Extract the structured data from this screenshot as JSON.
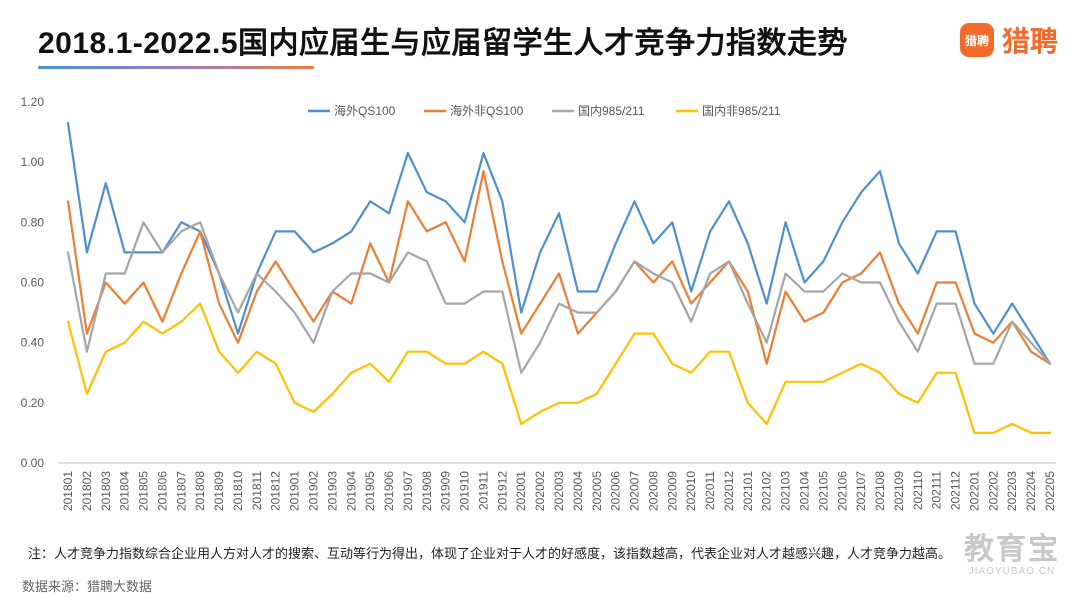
{
  "header": {
    "title": "2018.1-2022.5国内应届生与应届留学生人才竞争力指数走势",
    "brand_icon_text": "猎聘",
    "brand_name": "猎聘"
  },
  "footer": {
    "note": "注：人才竞争力指数综合企业用人方对人才的搜索、互动等行为得出，体现了企业对于人才的好感度，该指数越高，代表企业对人才越感兴趣，人才竞争力越高。",
    "source": "数据来源：猎聘大数据"
  },
  "watermark": {
    "main": "教育宝",
    "sub": "JIAOYUBAO.CN"
  },
  "colors": {
    "brand": "#f26a2a",
    "axis_text": "#595959",
    "grid": "#d9d9d9"
  },
  "chart_data": {
    "type": "line",
    "title": "",
    "xlabel": "",
    "ylabel": "",
    "ylim": [
      0,
      1.2
    ],
    "yticks": [
      "0.00",
      "0.20",
      "0.40",
      "0.60",
      "0.80",
      "1.00",
      "1.20"
    ],
    "grid": false,
    "legend_position": "top",
    "categories": [
      "201801",
      "201802",
      "201803",
      "201804",
      "201805",
      "201806",
      "201807",
      "201808",
      "201809",
      "201810",
      "201811",
      "201812",
      "201901",
      "201902",
      "201903",
      "201904",
      "201905",
      "201906",
      "201907",
      "201908",
      "201909",
      "201910",
      "201911",
      "201912",
      "202001",
      "202002",
      "202003",
      "202004",
      "202005",
      "202006",
      "202007",
      "202008",
      "202009",
      "202010",
      "202011",
      "202012",
      "202101",
      "202102",
      "202103",
      "202104",
      "202105",
      "202106",
      "202107",
      "202108",
      "202109",
      "202110",
      "202111",
      "202112",
      "202201",
      "202202",
      "202203",
      "202204",
      "202205"
    ],
    "series": [
      {
        "name": "海外QS100",
        "color": "#4e8fd0",
        "values": [
          1.13,
          0.7,
          0.93,
          0.7,
          0.7,
          0.7,
          0.8,
          0.77,
          0.63,
          0.43,
          0.63,
          0.77,
          0.77,
          0.7,
          0.73,
          0.77,
          0.87,
          0.83,
          1.03,
          0.9,
          0.87,
          0.8,
          1.03,
          0.87,
          0.5,
          0.7,
          0.83,
          0.57,
          0.57,
          0.73,
          0.87,
          0.73,
          0.8,
          0.57,
          0.77,
          0.87,
          0.73,
          0.53,
          0.8,
          0.6,
          0.67,
          0.8,
          0.9,
          0.97,
          0.73,
          0.63,
          0.77,
          0.77,
          0.53,
          0.43,
          0.53,
          0.43,
          0.33
        ]
      },
      {
        "name": "海外非QS100",
        "color": "#ed7d31",
        "values": [
          0.87,
          0.43,
          0.6,
          0.53,
          0.6,
          0.47,
          0.63,
          0.77,
          0.53,
          0.4,
          0.57,
          0.67,
          0.57,
          0.47,
          0.57,
          0.53,
          0.73,
          0.6,
          0.87,
          0.77,
          0.8,
          0.67,
          0.97,
          0.67,
          0.43,
          0.53,
          0.63,
          0.43,
          0.5,
          0.57,
          0.67,
          0.6,
          0.67,
          0.53,
          0.6,
          0.67,
          0.57,
          0.33,
          0.57,
          0.47,
          0.5,
          0.6,
          0.63,
          0.7,
          0.53,
          0.43,
          0.6,
          0.6,
          0.43,
          0.4,
          0.47,
          0.37,
          0.33
        ]
      },
      {
        "name": "国内985/211",
        "color": "#a5a5a5",
        "values": [
          0.7,
          0.37,
          0.63,
          0.63,
          0.8,
          0.7,
          0.77,
          0.8,
          0.63,
          0.5,
          0.63,
          0.57,
          0.5,
          0.4,
          0.57,
          0.63,
          0.63,
          0.6,
          0.7,
          0.67,
          0.53,
          0.53,
          0.57,
          0.57,
          0.3,
          0.4,
          0.53,
          0.5,
          0.5,
          0.57,
          0.67,
          0.63,
          0.6,
          0.47,
          0.63,
          0.67,
          0.53,
          0.4,
          0.63,
          0.57,
          0.57,
          0.63,
          0.6,
          0.6,
          0.47,
          0.37,
          0.53,
          0.53,
          0.33,
          0.33,
          0.47,
          0.4,
          0.33
        ]
      },
      {
        "name": "国内非985/211",
        "color": "#ffc000",
        "values": [
          0.47,
          0.23,
          0.37,
          0.4,
          0.47,
          0.43,
          0.47,
          0.53,
          0.37,
          0.3,
          0.37,
          0.33,
          0.2,
          0.17,
          0.23,
          0.3,
          0.33,
          0.27,
          0.37,
          0.37,
          0.33,
          0.33,
          0.37,
          0.33,
          0.13,
          0.17,
          0.2,
          0.2,
          0.23,
          0.33,
          0.43,
          0.43,
          0.33,
          0.3,
          0.37,
          0.37,
          0.2,
          0.13,
          0.27,
          0.27,
          0.27,
          0.3,
          0.33,
          0.3,
          0.23,
          0.2,
          0.3,
          0.3,
          0.1,
          0.1,
          0.13,
          0.1,
          0.1
        ]
      }
    ]
  }
}
